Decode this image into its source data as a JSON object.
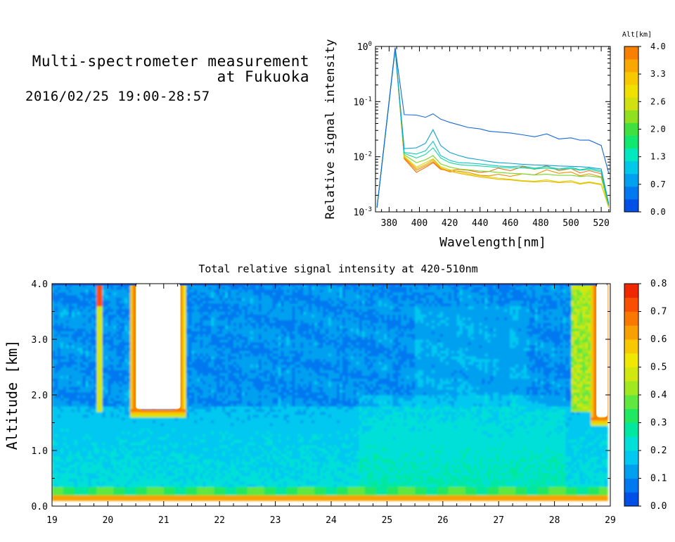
{
  "header": {
    "title_line1": "Multi-spectrometer measurement",
    "title_line2": "at Fukuoka",
    "time_range": "2016/02/25 19:00-28:57"
  },
  "chart_data": [
    {
      "type": "line",
      "xlabel": "Wavelength[nm]",
      "ylabel": "Relative signal intensity",
      "y_scale": "log",
      "xlim": [
        371,
        526
      ],
      "ylim": [
        0.001,
        1
      ],
      "x_ticks": [
        380,
        400,
        420,
        440,
        460,
        480,
        500,
        520
      ],
      "y_ticks": [
        {
          "value": 1,
          "label": "10^0"
        },
        {
          "value": 0.1,
          "label": "10^-1"
        },
        {
          "value": 0.01,
          "label": "10^-2"
        },
        {
          "value": 0.001,
          "label": "10^-3"
        }
      ],
      "x": [
        372,
        384,
        390,
        398,
        404,
        409,
        414,
        420,
        426,
        432,
        440,
        446,
        452,
        460,
        468,
        476,
        484,
        492,
        500,
        506,
        512,
        520,
        525
      ],
      "series": [
        {
          "altitude": 0.2,
          "color": "#1868d8",
          "values": [
            0.0012,
            0.95,
            0.058,
            0.057,
            0.052,
            0.06,
            0.048,
            0.042,
            0.038,
            0.034,
            0.032,
            0.029,
            0.028,
            0.027,
            0.025,
            0.023,
            0.026,
            0.021,
            0.022,
            0.02,
            0.02,
            0.016,
            0.005
          ]
        },
        {
          "altitude": 0.9,
          "color": "#0ea0d0",
          "values": [
            0.0012,
            0.9,
            0.014,
            0.0145,
            0.0175,
            0.031,
            0.016,
            0.012,
            0.0105,
            0.0095,
            0.0088,
            0.0082,
            0.0078,
            0.0076,
            0.0073,
            0.0071,
            0.007,
            0.0068,
            0.0067,
            0.0066,
            0.0064,
            0.006,
            0.0014
          ]
        },
        {
          "altitude": 1.3,
          "color": "#10c8c0",
          "values": [
            0.0012,
            0.9,
            0.012,
            0.0112,
            0.0128,
            0.019,
            0.0105,
            0.0086,
            0.0078,
            0.0077,
            0.0074,
            0.0071,
            0.0068,
            0.0066,
            0.0068,
            0.0062,
            0.0066,
            0.006,
            0.0064,
            0.0058,
            0.0062,
            0.0056,
            0.0013
          ]
        },
        {
          "altitude": 1.5,
          "color": "#18d8a0",
          "values": [
            0.0012,
            0.9,
            0.0115,
            0.0095,
            0.011,
            0.0145,
            0.0095,
            0.0078,
            0.0072,
            0.007,
            0.0068,
            0.0066,
            0.0064,
            0.0063,
            0.0063,
            0.006,
            0.0062,
            0.0059,
            0.0061,
            0.0057,
            0.0059,
            0.0053,
            0.0013
          ]
        },
        {
          "altitude": 2.2,
          "color": "#78d820",
          "values": [
            0.0012,
            0.9,
            0.0108,
            0.0078,
            0.0088,
            0.0105,
            0.0074,
            0.0065,
            0.006,
            0.0058,
            0.0055,
            0.0054,
            0.0052,
            0.005,
            0.0049,
            0.0047,
            0.0048,
            0.0046,
            0.0046,
            0.0044,
            0.0045,
            0.0042,
            0.0013
          ]
        },
        {
          "altitude": 2.8,
          "color": "#d8d808",
          "values": [
            0.0012,
            0.9,
            0.0102,
            0.0065,
            0.0078,
            0.0092,
            0.0066,
            0.0058,
            0.0053,
            0.0049,
            0.0045,
            0.0043,
            0.0041,
            0.0039,
            0.0037,
            0.0036,
            0.0038,
            0.0035,
            0.0037,
            0.0033,
            0.0035,
            0.0032,
            0.0012
          ]
        },
        {
          "altitude": 3.1,
          "color": "#f0b000",
          "values": [
            0.0012,
            0.9,
            0.0098,
            0.0061,
            0.0072,
            0.0088,
            0.0063,
            0.0055,
            0.005,
            0.0047,
            0.0043,
            0.0041,
            0.0039,
            0.0038,
            0.0036,
            0.0035,
            0.0036,
            0.0034,
            0.0035,
            0.0032,
            0.0034,
            0.0031,
            0.0012
          ]
        },
        {
          "altitude": 3.4,
          "color": "#f09000",
          "values": [
            0.0012,
            0.9,
            0.0095,
            0.0057,
            0.0068,
            0.0082,
            0.0061,
            0.0053,
            0.0055,
            0.0052,
            0.0046,
            0.0045,
            0.0048,
            0.0044,
            0.0049,
            0.0047,
            0.0058,
            0.005,
            0.0053,
            0.0045,
            0.0049,
            0.0043,
            0.0012
          ]
        },
        {
          "altitude": 3.8,
          "color": "#f07010",
          "values": [
            0.0012,
            0.9,
            0.0092,
            0.0052,
            0.0064,
            0.0078,
            0.0059,
            0.0056,
            0.0059,
            0.0057,
            0.0052,
            0.0054,
            0.0062,
            0.0056,
            0.0066,
            0.0059,
            0.0069,
            0.0056,
            0.0061,
            0.0051,
            0.0056,
            0.0049,
            0.0012
          ]
        }
      ],
      "colorbar": {
        "label": "Alt[km]",
        "ticks": [
          "0.0",
          "0.7",
          "1.3",
          "2.0",
          "2.6",
          "3.3",
          "4.0"
        ],
        "range": [
          0,
          4
        ],
        "colors": [
          "#0050e8",
          "#0078f0",
          "#00a0f0",
          "#00c8e8",
          "#00e8c0",
          "#10e870",
          "#40e040",
          "#90e020",
          "#d0e010",
          "#f0e000",
          "#f8c800",
          "#f8a800",
          "#f88000"
        ]
      }
    },
    {
      "type": "heatmap",
      "title": "Total relative signal intensity at 420-510nm",
      "ylabel": "Altitude [km]",
      "xlim": [
        19,
        29
      ],
      "ylim": [
        0,
        4
      ],
      "x_ticks": [
        "19",
        "20",
        "21",
        "22",
        "23",
        "24",
        "25",
        "26",
        "27",
        "28",
        "29"
      ],
      "y_ticks": [
        "0.0",
        "1.0",
        "2.0",
        "3.0",
        "4.0"
      ],
      "data_start": 19.0,
      "data_end": 28.95,
      "cloud_regions": [
        {
          "x0": 20.5,
          "x1": 21.3,
          "ybase": 1.75
        },
        {
          "x0": 28.75,
          "x1": 28.95,
          "ybase": 1.6
        }
      ],
      "colorbar": {
        "ticks": [
          "0.0",
          "0.1",
          "0.2",
          "0.3",
          "0.4",
          "0.5",
          "0.6",
          "0.7",
          "0.8"
        ],
        "range": [
          0,
          0.8
        ],
        "colors": [
          "#0050e8",
          "#0078f0",
          "#00a0f0",
          "#00c8f0",
          "#00e0d8",
          "#00e8a0",
          "#20e860",
          "#60e840",
          "#a0e820",
          "#d0e810",
          "#f0e800",
          "#f8c800",
          "#f8a000",
          "#f87800",
          "#f85000",
          "#f02800"
        ]
      }
    }
  ]
}
